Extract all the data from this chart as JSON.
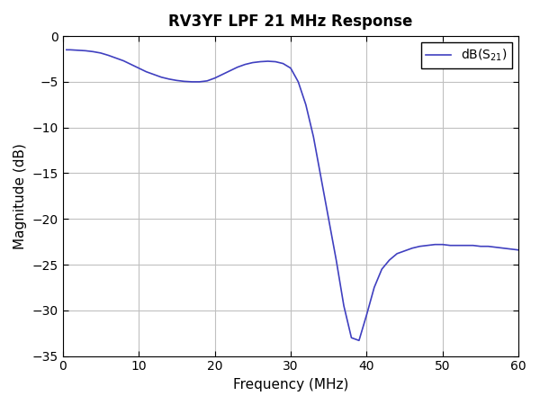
{
  "title": "RV3YF LPF 21 MHz Response",
  "xlabel": "Frequency (MHz)",
  "ylabel": "Magnitude (dB)",
  "xlim": [
    0,
    60
  ],
  "ylim": [
    -35,
    0
  ],
  "xticks": [
    0,
    10,
    20,
    30,
    40,
    50,
    60
  ],
  "yticks": [
    0,
    -5,
    -10,
    -15,
    -20,
    -25,
    -30,
    -35
  ],
  "line_color": "#4040c0",
  "legend_label": "dB(S",
  "legend_subscript": "21",
  "background_color": "#ffffff",
  "grid_color": "#c0c0c0",
  "curve_x": [
    0.5,
    1,
    2,
    3,
    4,
    5,
    6,
    7,
    8,
    9,
    10,
    11,
    12,
    13,
    14,
    15,
    16,
    17,
    18,
    19,
    20,
    21,
    22,
    23,
    24,
    25,
    26,
    27,
    28,
    29,
    30,
    31,
    32,
    33,
    34,
    35,
    36,
    37,
    38,
    39,
    40,
    41,
    42,
    43,
    44,
    45,
    46,
    47,
    48,
    49,
    50,
    51,
    52,
    53,
    54,
    55,
    56,
    57,
    58,
    59,
    60
  ],
  "curve_y": [
    -1.5,
    -1.5,
    -1.55,
    -1.6,
    -1.7,
    -1.85,
    -2.1,
    -2.4,
    -2.7,
    -3.1,
    -3.5,
    -3.9,
    -4.2,
    -4.5,
    -4.7,
    -4.85,
    -4.95,
    -5.0,
    -5.0,
    -4.9,
    -4.6,
    -4.2,
    -3.8,
    -3.4,
    -3.1,
    -2.9,
    -2.8,
    -2.75,
    -2.8,
    -3.0,
    -3.5,
    -5.0,
    -7.5,
    -11.0,
    -15.5,
    -20.0,
    -24.5,
    -29.5,
    -33.0,
    -33.3,
    -30.5,
    -27.5,
    -25.5,
    -24.5,
    -23.8,
    -23.5,
    -23.2,
    -23.0,
    -22.9,
    -22.8,
    -22.8,
    -22.9,
    -22.9,
    -22.9,
    -22.9,
    -23.0,
    -23.0,
    -23.1,
    -23.2,
    -23.3,
    -23.4
  ]
}
